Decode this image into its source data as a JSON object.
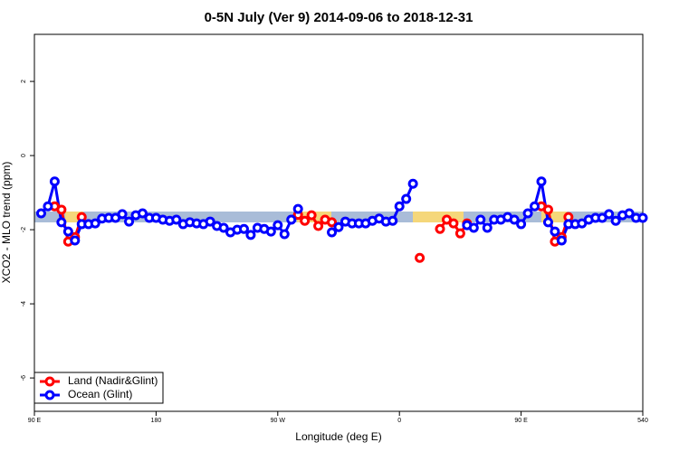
{
  "chart_data": {
    "type": "line",
    "title": "0-5N July (Ver 9)   2014-09-06 to 2018-12-31",
    "x_label": "Longitude (deg E)",
    "y_label": "XCO2 - MLO trend (ppm)",
    "x": [
      95,
      100,
      105,
      110,
      115,
      120,
      125,
      130,
      135,
      140,
      145,
      150,
      155,
      160,
      165,
      170,
      175,
      180,
      185,
      190,
      195,
      200,
      205,
      210,
      215,
      220,
      225,
      230,
      235,
      240,
      245,
      250,
      255,
      260,
      265,
      270,
      275,
      280,
      285,
      290,
      295,
      300,
      305,
      310,
      315,
      320,
      325,
      330,
      335,
      340,
      345,
      350,
      355,
      360,
      365,
      370,
      375,
      380,
      385,
      390,
      395,
      400,
      405,
      410,
      415,
      420,
      425,
      430,
      435,
      440,
      445,
      450,
      455,
      460,
      465,
      470,
      475,
      480,
      485,
      490,
      495,
      500,
      505,
      510,
      515,
      520,
      525,
      530,
      535,
      540
    ],
    "series": [
      {
        "name": "Land (Nadir&Glint)",
        "color": "#ff0000",
        "values": [
          null,
          null,
          -1.37,
          -1.46,
          -2.32,
          -2.2,
          -1.66,
          null,
          null,
          null,
          null,
          null,
          null,
          null,
          null,
          null,
          null,
          null,
          null,
          null,
          null,
          null,
          null,
          null,
          null,
          null,
          null,
          null,
          null,
          null,
          null,
          null,
          null,
          null,
          null,
          null,
          null,
          null,
          -1.6,
          -1.76,
          -1.61,
          -1.9,
          -1.73,
          -1.8,
          null,
          null,
          null,
          null,
          null,
          null,
          null,
          null,
          null,
          null,
          null,
          null,
          -2.76,
          null,
          null,
          -1.98,
          -1.73,
          -1.83,
          -2.1,
          -1.83,
          null,
          null,
          null,
          null,
          null,
          null,
          null,
          null,
          null,
          null,
          -1.37,
          -1.46,
          -2.32,
          -2.2,
          -1.66,
          null,
          null,
          null,
          null,
          null,
          null,
          null,
          null,
          null,
          null,
          null
        ]
      },
      {
        "name": "Ocean (Glint)",
        "color": "#0000ff",
        "values": [
          -1.56,
          -1.37,
          -0.7,
          -1.8,
          -2.05,
          -2.29,
          -1.85,
          -1.85,
          -1.83,
          -1.7,
          -1.68,
          -1.68,
          -1.58,
          -1.78,
          -1.61,
          -1.56,
          -1.68,
          -1.68,
          -1.73,
          -1.76,
          -1.73,
          -1.85,
          -1.8,
          -1.83,
          -1.85,
          -1.78,
          -1.9,
          -1.95,
          -2.07,
          -2.0,
          -1.98,
          -2.14,
          -1.95,
          -1.98,
          -2.05,
          -1.88,
          -2.12,
          -1.73,
          -1.44,
          null,
          null,
          null,
          null,
          -2.07,
          -1.93,
          -1.78,
          -1.83,
          -1.83,
          -1.83,
          -1.76,
          -1.7,
          -1.78,
          -1.76,
          -1.37,
          -1.17,
          -0.76,
          null,
          null,
          null,
          null,
          null,
          null,
          null,
          -1.88,
          -1.95,
          -1.73,
          -1.95,
          -1.73,
          -1.73,
          -1.66,
          -1.73,
          -1.85,
          -1.56,
          -1.37,
          -0.7,
          -1.8,
          -2.05,
          -2.29,
          -1.85,
          -1.85,
          -1.83,
          -1.73,
          -1.68,
          -1.68,
          -1.58,
          -1.76,
          -1.61,
          -1.56,
          -1.68,
          -1.68
        ]
      }
    ],
    "xlim": [
      90,
      540
    ],
    "xticks": [
      {
        "value": 90,
        "label": "90 E"
      },
      180,
      {
        "value": 270,
        "label": "90 W"
      },
      {
        "value": 360,
        "label": "0"
      },
      {
        "value": 450,
        "label": "90 E"
      },
      540
    ],
    "ylim": [
      -6.9,
      3.27
    ],
    "yticks": [
      -6,
      -4,
      -2,
      0,
      2
    ],
    "legend": "bottom-left"
  }
}
